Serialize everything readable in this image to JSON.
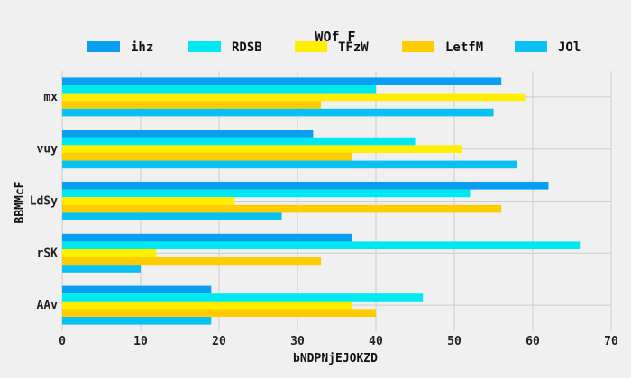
{
  "chart_data": {
    "type": "bar",
    "orientation": "horizontal",
    "title": "WOf  F",
    "xlabel": "bNDPNjEJOKZD",
    "ylabel": "BBMMcF",
    "categories": [
      "mx",
      "vuy",
      "LdSy",
      "rSK",
      "AAv"
    ],
    "xlim": [
      0,
      70
    ],
    "xticks": [
      0,
      10,
      20,
      30,
      40,
      50,
      60,
      70
    ],
    "grid": true,
    "legend_position": "top",
    "series": [
      {
        "name": "ihz",
        "color": "#0a9ef0",
        "values": [
          56,
          32,
          62,
          37,
          19
        ]
      },
      {
        "name": "RDSB",
        "color": "#00e8f0",
        "values": [
          40,
          45,
          52,
          66,
          46
        ]
      },
      {
        "name": "TFzW",
        "color": "#ffee00",
        "values": [
          59,
          51,
          22,
          12,
          37
        ]
      },
      {
        "name": "LetfM",
        "color": "#ffcc00",
        "values": [
          33,
          37,
          56,
          33,
          40
        ]
      },
      {
        "name": "JOl",
        "color": "#08c0f2",
        "values": [
          55,
          58,
          28,
          10,
          19
        ]
      }
    ]
  }
}
